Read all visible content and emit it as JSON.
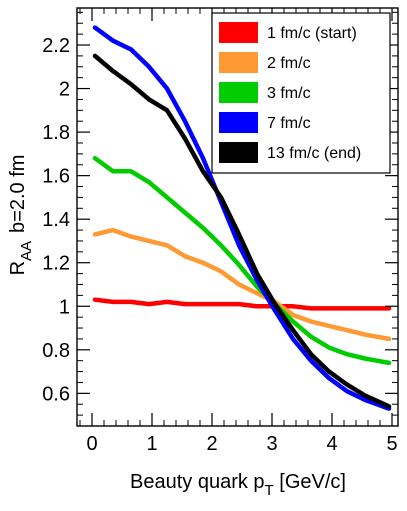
{
  "chart_data": {
    "type": "line",
    "xlabel": {
      "main": "Beauty quark p",
      "sub": "T",
      "unit": " [GeV/c]"
    },
    "ylabel": {
      "main": "R",
      "sub": "AA",
      "suffix": "b=2.0 fm"
    },
    "xlim": [
      -0.25,
      5.1
    ],
    "ylim": [
      0.45,
      2.37
    ],
    "x_ticks": [
      0,
      1,
      2,
      3,
      4,
      5
    ],
    "y_ticks": [
      0.6,
      0.8,
      1.0,
      1.2,
      1.4,
      1.6,
      1.8,
      2.0,
      2.2
    ],
    "x_tick_labels": [
      "0",
      "1",
      "2",
      "3",
      "4",
      "5"
    ],
    "y_tick_labels": [
      "0.6",
      "0.8",
      "1",
      "1.2",
      "1.4",
      "1.6",
      "1.8",
      "2",
      "2.2"
    ],
    "grid": false,
    "legend_position": "top-right",
    "x": [
      0.05,
      0.35,
      0.65,
      0.95,
      1.25,
      1.55,
      1.85,
      2.15,
      2.45,
      2.75,
      3.05,
      3.35,
      3.65,
      3.95,
      4.25,
      4.55,
      4.95
    ],
    "series": [
      {
        "name": "1 fm/c (start)",
        "color": "#ff0000",
        "values": [
          1.03,
          1.02,
          1.02,
          1.01,
          1.02,
          1.01,
          1.01,
          1.01,
          1.01,
          1.0,
          1.0,
          1.0,
          0.99,
          0.99,
          0.99,
          0.99,
          0.99
        ]
      },
      {
        "name": "2 fm/c",
        "color": "#ff9933",
        "values": [
          1.33,
          1.35,
          1.32,
          1.3,
          1.28,
          1.23,
          1.2,
          1.16,
          1.1,
          1.06,
          1.02,
          0.96,
          0.93,
          0.91,
          0.89,
          0.87,
          0.85
        ]
      },
      {
        "name": "3 fm/c",
        "color": "#00cc00",
        "values": [
          1.68,
          1.62,
          1.62,
          1.57,
          1.5,
          1.43,
          1.36,
          1.28,
          1.19,
          1.09,
          1.01,
          0.93,
          0.86,
          0.81,
          0.78,
          0.76,
          0.74
        ]
      },
      {
        "name": "7 fm/c",
        "color": "#0000ff",
        "values": [
          2.28,
          2.22,
          2.18,
          2.1,
          2.0,
          1.85,
          1.68,
          1.48,
          1.28,
          1.12,
          0.98,
          0.85,
          0.75,
          0.67,
          0.61,
          0.57,
          0.53
        ]
      },
      {
        "name": "13 fm/c (end)",
        "color": "#000000",
        "values": [
          2.15,
          2.08,
          2.02,
          1.95,
          1.9,
          1.77,
          1.62,
          1.5,
          1.33,
          1.15,
          1.01,
          0.89,
          0.78,
          0.7,
          0.64,
          0.59,
          0.54
        ]
      }
    ]
  }
}
